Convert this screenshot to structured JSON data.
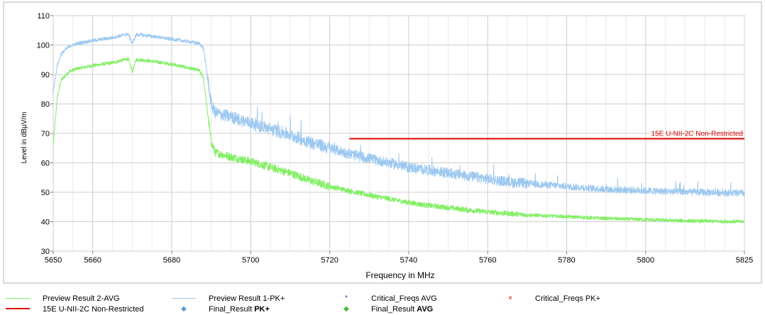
{
  "chart_data": {
    "type": "line",
    "title": "",
    "xlabel": "Frequency in MHz",
    "ylabel": "Level in dBµV/m",
    "xlim": [
      5650,
      5825
    ],
    "ylim": [
      30,
      110
    ],
    "x_ticks": [
      5650,
      5660,
      5680,
      5700,
      5720,
      5740,
      5760,
      5780,
      5800,
      5825
    ],
    "y_ticks": [
      30,
      40,
      50,
      60,
      70,
      80,
      90,
      100,
      110
    ],
    "grid": true,
    "series": [
      {
        "name": "Preview Result 1-PK+",
        "color": "#9cc8f0",
        "x": [
          5650,
          5651,
          5652,
          5654,
          5656,
          5660,
          5665,
          5668,
          5669,
          5670,
          5671,
          5672,
          5675,
          5680,
          5685,
          5687,
          5688,
          5689,
          5690,
          5691,
          5695,
          5700,
          5705,
          5710,
          5715,
          5720,
          5725,
          5730,
          5735,
          5740,
          5745,
          5750,
          5755,
          5760,
          5765,
          5770,
          5775,
          5780,
          5785,
          5790,
          5795,
          5800,
          5805,
          5810,
          5815,
          5820,
          5825
        ],
        "values": [
          84,
          93,
          97,
          99.5,
          100.5,
          101.5,
          102.5,
          103.5,
          103.8,
          100.5,
          103.5,
          103.5,
          103,
          102,
          101,
          100.5,
          99,
          90,
          80,
          77,
          75.5,
          73.5,
          71.5,
          69.5,
          67,
          65,
          63,
          61.5,
          60,
          58.5,
          57.5,
          56.5,
          55.5,
          54.5,
          53.5,
          53,
          52.5,
          52,
          51.5,
          51,
          50.8,
          50.5,
          50.3,
          50.1,
          50,
          49.8,
          49.7
        ]
      },
      {
        "name": "Preview Result 2-AVG",
        "color": "#80ee62",
        "x": [
          5650,
          5651,
          5652,
          5654,
          5656,
          5660,
          5665,
          5668,
          5669,
          5670,
          5671,
          5672,
          5675,
          5680,
          5685,
          5687,
          5688,
          5689,
          5690,
          5691,
          5695,
          5700,
          5705,
          5710,
          5715,
          5720,
          5725,
          5730,
          5735,
          5740,
          5745,
          5750,
          5755,
          5760,
          5765,
          5770,
          5775,
          5780,
          5785,
          5790,
          5795,
          5800,
          5805,
          5810,
          5815,
          5820,
          5825
        ],
        "values": [
          66,
          82,
          88,
          91,
          92,
          93,
          94,
          95,
          95.3,
          91,
          95,
          95,
          94.5,
          93.5,
          92,
          91.3,
          89,
          78,
          67,
          63.5,
          62,
          60.5,
          58.5,
          56.5,
          54,
          52,
          50.5,
          49,
          47.8,
          46.5,
          45.5,
          44.8,
          44,
          43.3,
          42.8,
          42.3,
          42,
          41.7,
          41.4,
          41.1,
          40.9,
          40.7,
          40.5,
          40.3,
          40.2,
          40.1,
          40
        ]
      },
      {
        "name": "15E U-NII-2C Non-Restricted",
        "color": "#dd0000",
        "x": [
          5725,
          5825
        ],
        "values": [
          68.2,
          68.2
        ]
      }
    ],
    "annotations": [
      {
        "text": "15E U-NII-2C Non-Restricted",
        "x": 5825,
        "y": 68.2,
        "color": "#dd0000"
      }
    ],
    "legend": {
      "position": "bottom",
      "items": [
        {
          "kind": "line",
          "color": "#80ee62",
          "label": "Preview Result 2-AVG",
          "bold_part": ""
        },
        {
          "kind": "line",
          "color": "#9cc8f0",
          "label": "Preview Result 1-PK+",
          "bold_part": ""
        },
        {
          "kind": "marker",
          "symbol": "*",
          "color": "#2233cc",
          "label": "Critical_Freqs AVG",
          "bold_part": ""
        },
        {
          "kind": "marker",
          "symbol": "×",
          "color": "#dd0000",
          "label": "Critical_Freqs PK+",
          "bold_part": ""
        },
        {
          "kind": "thick-line",
          "color": "#dd0000",
          "label": "15E U-NII-2C Non-Restricted",
          "bold_part": ""
        },
        {
          "kind": "marker",
          "symbol": "◆",
          "color": "#5b9bd5",
          "label": "Final_Result ",
          "bold_part": "PK+"
        },
        {
          "kind": "marker",
          "symbol": "◆",
          "color": "#44bb33",
          "label": "Final_Result ",
          "bold_part": "AVG"
        }
      ]
    }
  }
}
